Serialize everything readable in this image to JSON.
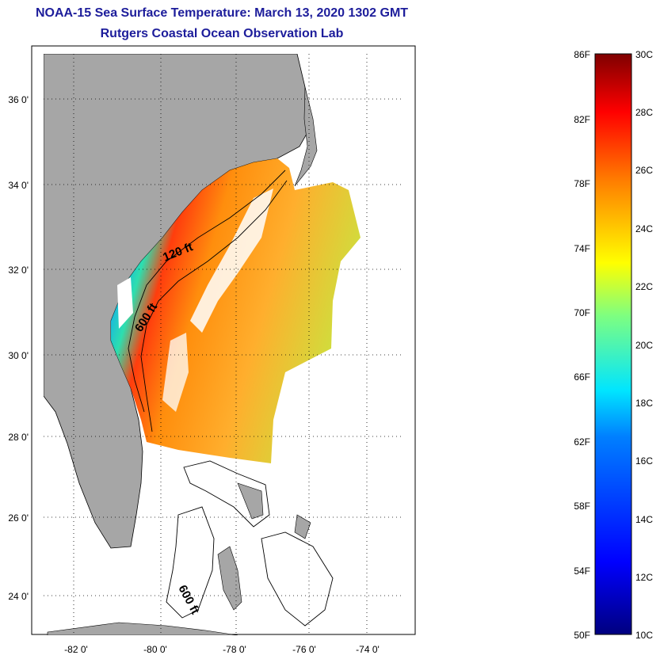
{
  "header": {
    "title": "NOAA-15 Sea Surface Temperature:  March 13, 2020 1302 GMT",
    "subtitle": "Rutgers Coastal Ocean Observation Lab"
  },
  "map": {
    "lat_labels": [
      "36 0'",
      "34 0'",
      "32 0'",
      "30 0'",
      "28 0'",
      "26 0'",
      "24 0'"
    ],
    "lon_labels": [
      "-82 0'",
      "-80 0'",
      "-78 0'",
      "-76 0'",
      "-74 0'"
    ],
    "contours": {
      "shelf_120": "120 ft",
      "shelf_600": "600 ft",
      "bahamas_600": "600 ft"
    }
  },
  "colorbar": {
    "f_labels": [
      "86F",
      "82F",
      "78F",
      "74F",
      "70F",
      "66F",
      "62F",
      "58F",
      "54F",
      "50F"
    ],
    "c_labels": [
      "30C",
      "28C",
      "26C",
      "24C",
      "22C",
      "20C",
      "18C",
      "16C",
      "14C",
      "12C",
      "10C"
    ],
    "colors": [
      "#00007f",
      "#0000ff",
      "#007fff",
      "#00ffff",
      "#7fff7f",
      "#ffff00",
      "#ff7f00",
      "#ff0000",
      "#7f0000"
    ]
  }
}
